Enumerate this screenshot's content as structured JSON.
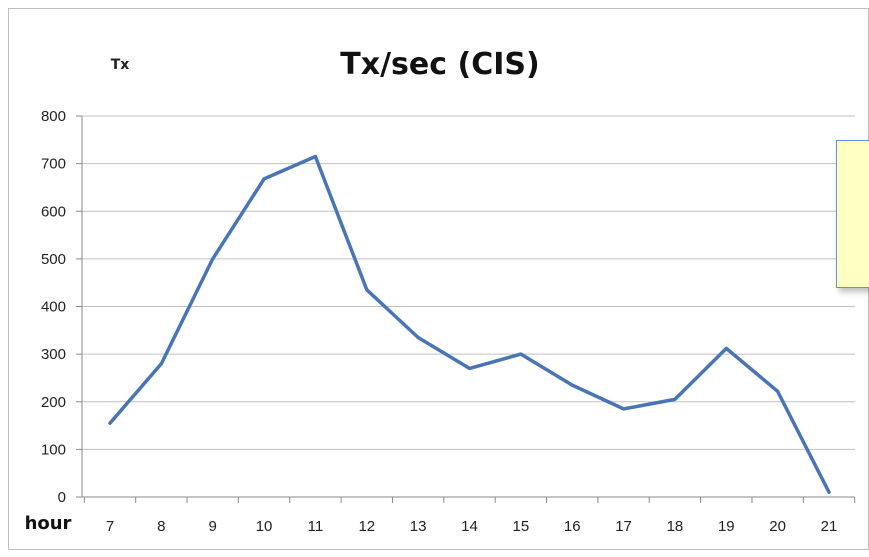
{
  "chart_data": {
    "type": "line",
    "title": "Tx/sec (CIS)",
    "ylabel": "Tx",
    "xlabel": "hour",
    "x": [
      7,
      8,
      9,
      10,
      11,
      12,
      13,
      14,
      15,
      16,
      17,
      18,
      19,
      20,
      21
    ],
    "x_tick_labels": [
      "7",
      "8",
      "9",
      "10",
      "11",
      "12",
      "13",
      "14",
      "15",
      "16",
      "17",
      "18",
      "19",
      "20",
      "21"
    ],
    "y_ticks": [
      0,
      100,
      200,
      300,
      400,
      500,
      600,
      700,
      800
    ],
    "y_tick_labels": [
      "0",
      "100",
      "200",
      "300",
      "400",
      "500",
      "600",
      "700",
      "800"
    ],
    "ylim": [
      0,
      800
    ],
    "grid": "horizontal",
    "legend": "none",
    "series": [
      {
        "values": [
          155,
          280,
          500,
          668,
          715,
          435,
          335,
          270,
          300,
          235,
          185,
          205,
          312,
          222,
          10
        ],
        "color": "#4a75b5"
      }
    ]
  },
  "colors": {
    "callout_fill": "#ffffc4",
    "callout_border": "#6b8fd6",
    "gridline": "#c0c0c0"
  }
}
